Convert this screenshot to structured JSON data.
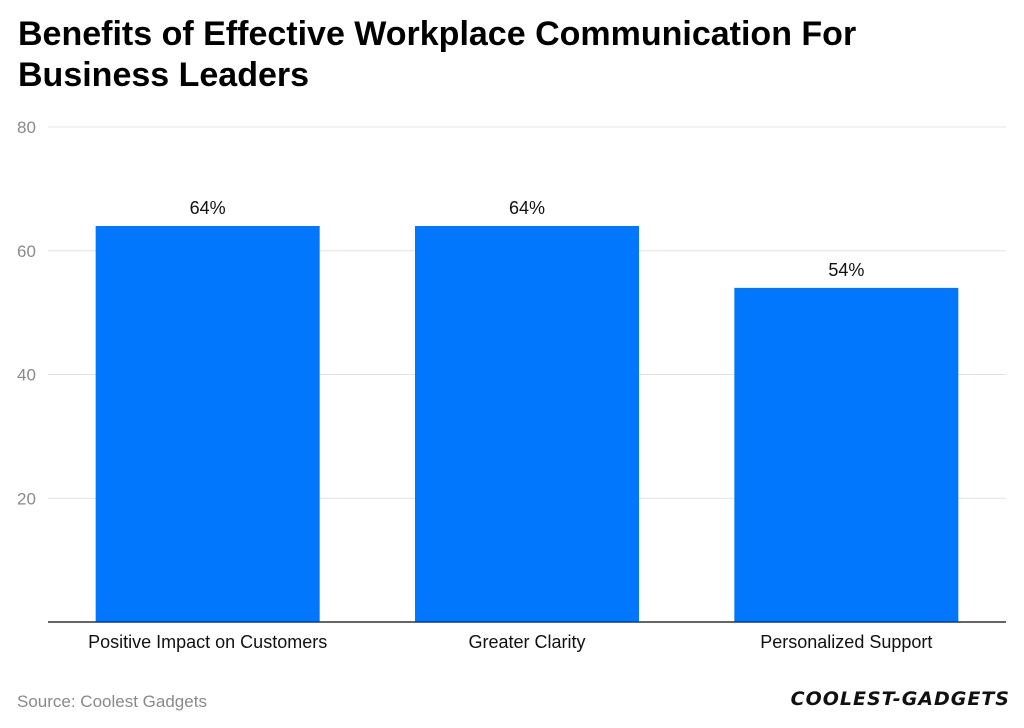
{
  "chart_data": {
    "type": "bar",
    "title": "Benefits of Effective Workplace Communication For Business Leaders",
    "categories": [
      "Positive Impact on Customers",
      "Greater Clarity",
      "Personalized Support"
    ],
    "values": [
      64,
      64,
      54
    ],
    "data_labels": [
      "64%",
      "64%",
      "54%"
    ],
    "yticks": [
      20,
      40,
      60,
      80
    ],
    "ylim": [
      0,
      80
    ],
    "grid": true,
    "bar_color": "#0177fd"
  },
  "footer": {
    "source": "Source: Coolest Gadgets",
    "brand": "COOLEST-GADGETS"
  }
}
